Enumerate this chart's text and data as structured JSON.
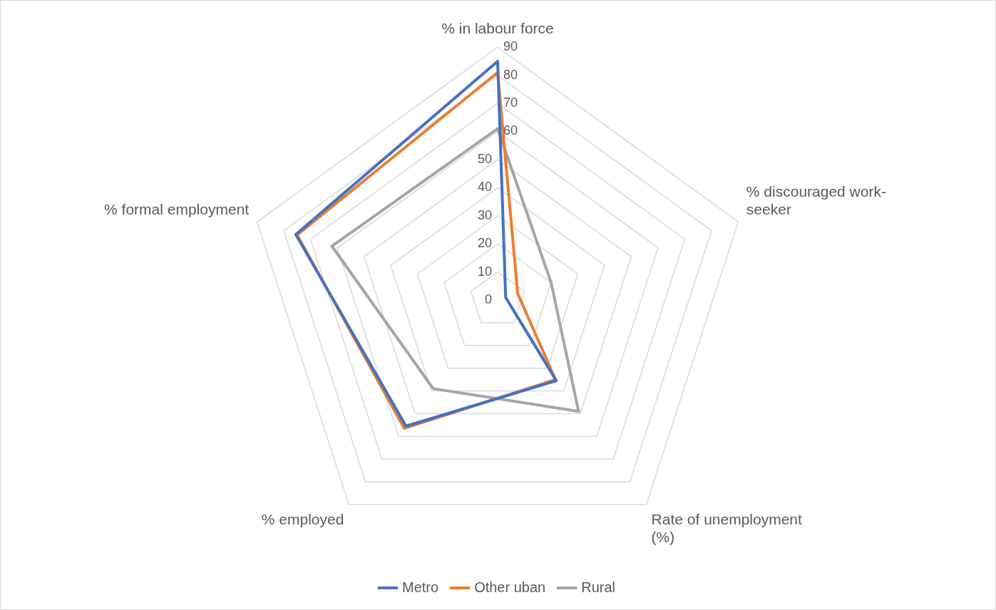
{
  "chart_data": {
    "type": "radar",
    "categories": [
      "% in labour force",
      "% discouraged work-seeker",
      "Rate of unemployment (%)",
      "% employed",
      "% formal employment"
    ],
    "series": [
      {
        "name": "Metro",
        "color": "#4472c4",
        "values": [
          85,
          3,
          35.5,
          55.5,
          75.5
        ]
      },
      {
        "name": "Other uban",
        "color": "#ed7d31",
        "values": [
          81,
          7.5,
          35,
          56.5,
          75
        ]
      },
      {
        "name": "Rural",
        "color": "#a5a5a5",
        "values": [
          61,
          20,
          49,
          39,
          62
        ]
      }
    ],
    "ylim": [
      0,
      90
    ],
    "yticks": [
      0,
      10,
      20,
      30,
      40,
      50,
      60,
      70,
      80,
      90
    ],
    "grid": true,
    "legend": "bottom",
    "marker": "none",
    "line_style": "solid"
  }
}
